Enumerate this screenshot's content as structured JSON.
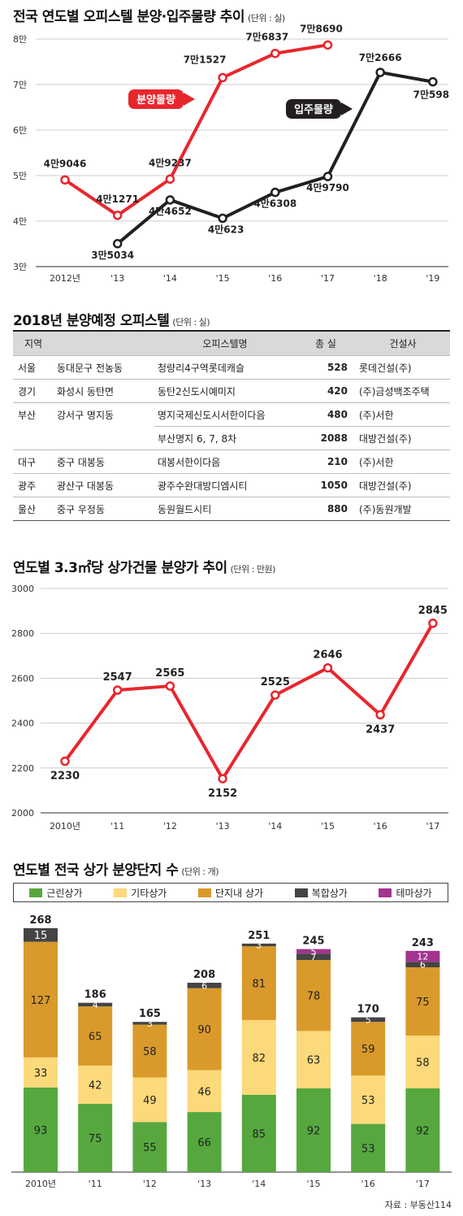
{
  "chart1": {
    "title": "전국 연도별 오피스텔 분양·입주물량 추이",
    "unit": "(단위 : 실)",
    "chart_data": {
      "type": "line",
      "categories": [
        "2012년",
        "'13",
        "'14",
        "'15",
        "'16",
        "'17",
        "'18",
        "'19"
      ],
      "ylim": [
        30000,
        80000
      ],
      "yticks": [
        {
          "label": "3만",
          "value": 30000
        },
        {
          "label": "4만",
          "value": 40000
        },
        {
          "label": "5만",
          "value": 50000
        },
        {
          "label": "6만",
          "value": 60000
        },
        {
          "label": "7만",
          "value": 70000
        },
        {
          "label": "8만",
          "value": 80000
        }
      ],
      "grid": true,
      "series": [
        {
          "name": "분양물량",
          "color": "#e8262d",
          "values": [
            49046,
            41271,
            49237,
            71527,
            76837,
            78690,
            null,
            null
          ],
          "labels": [
            "4만9046",
            "4만1271",
            "4만9237",
            "7만1527",
            "7만6837",
            "7만8690",
            null,
            null
          ]
        },
        {
          "name": "입주물량",
          "color": "#231f20",
          "values": [
            null,
            35034,
            44652,
            40623,
            46308,
            49790,
            72666,
            70598
          ],
          "labels": [
            null,
            "3만5034",
            "4만4652",
            "4만623",
            "4만6308",
            "4만9790",
            "7만2666",
            "7만598"
          ]
        }
      ]
    }
  },
  "table": {
    "title": "2018년 분양예정 오피스텔",
    "unit": "(단위 : 실)",
    "headers": [
      "지역",
      "오피스텔명",
      "총 실",
      "건설사"
    ],
    "rows": [
      {
        "region": "서울",
        "district": "동대문구 전농동",
        "name": "청량리4구역롯데캐슬",
        "total": "528",
        "builder": "롯데건설(주)"
      },
      {
        "region": "경기",
        "district": "화성시 동탄면",
        "name": "동탄2신도시예미지",
        "total": "420",
        "builder": "(주)금성백조주택"
      },
      {
        "region": "부산",
        "district": "강서구 명지동",
        "name": "명지국제신도시서한이다음",
        "total": "480",
        "builder": "(주)서한"
      },
      {
        "region": "",
        "district": "",
        "name": "부산명지 6, 7, 8차",
        "total": "2088",
        "builder": "대방건설(주)"
      },
      {
        "region": "대구",
        "district": "중구 대봉동",
        "name": "대봉서한이다음",
        "total": "210",
        "builder": "(주)서한"
      },
      {
        "region": "광주",
        "district": "광산구 대봉동",
        "name": "광주수완대방디엠시티",
        "total": "1050",
        "builder": "대방건설(주)"
      },
      {
        "region": "울산",
        "district": "중구 우정동",
        "name": "동원월드시티",
        "total": "880",
        "builder": "(주)동원개발"
      }
    ]
  },
  "chart2": {
    "title": "연도별 3.3㎡당 상가건물 분양가 추이",
    "unit": "(단위 : 만원)",
    "chart_data": {
      "type": "line",
      "categories": [
        "2010년",
        "'11",
        "'12",
        "'13",
        "'14",
        "'15",
        "'16",
        "'17"
      ],
      "ylim": [
        2000,
        3000
      ],
      "yticks": [
        2000,
        2200,
        2400,
        2600,
        2800,
        3000
      ],
      "grid": true,
      "series": [
        {
          "color": "#e8262d",
          "values": [
            2230,
            2547,
            2565,
            2152,
            2525,
            2646,
            2437,
            2845
          ]
        }
      ]
    }
  },
  "chart3": {
    "title": "연도별 전국 상가 분양단지 수",
    "unit": "(단위 : 개)",
    "source": "자료 : 부동산114",
    "chart_data": {
      "type": "bar",
      "stacked": true,
      "categories": [
        "2010년",
        "'11",
        "'12",
        "'13",
        "'14",
        "'15",
        "'16",
        "'17"
      ],
      "totals": [
        268,
        186,
        165,
        208,
        251,
        245,
        170,
        243
      ],
      "legend_position": "top",
      "series": [
        {
          "name": "근린상가",
          "color": "#56a83e",
          "values": [
            93,
            75,
            55,
            66,
            85,
            92,
            53,
            92
          ]
        },
        {
          "name": "기타상가",
          "color": "#fcd97a",
          "values": [
            33,
            42,
            49,
            46,
            82,
            63,
            53,
            58
          ]
        },
        {
          "name": "단지내 상가",
          "color": "#d99a2b",
          "values": [
            127,
            65,
            58,
            90,
            81,
            78,
            59,
            75
          ]
        },
        {
          "name": "복합상가",
          "color": "#444444",
          "values": [
            15,
            4,
            3,
            6,
            3,
            7,
            5,
            6
          ]
        },
        {
          "name": "테마상가",
          "color": "#a3348f",
          "values": [
            0,
            0,
            0,
            0,
            0,
            5,
            0,
            12
          ]
        }
      ],
      "segment_labels": [
        [
          "93",
          "33",
          "127",
          "15",
          null
        ],
        [
          "75",
          "42",
          "65",
          "4",
          null
        ],
        [
          "55",
          "49",
          "58",
          "3",
          null
        ],
        [
          "66",
          "46",
          "90",
          "6",
          null
        ],
        [
          "85",
          "82",
          "81",
          "3",
          null
        ],
        [
          "92",
          "63",
          "78",
          "7",
          "5"
        ],
        [
          "53",
          "53",
          "59",
          "5",
          null
        ],
        [
          "92",
          "58",
          "75",
          "6",
          "12"
        ]
      ]
    }
  }
}
